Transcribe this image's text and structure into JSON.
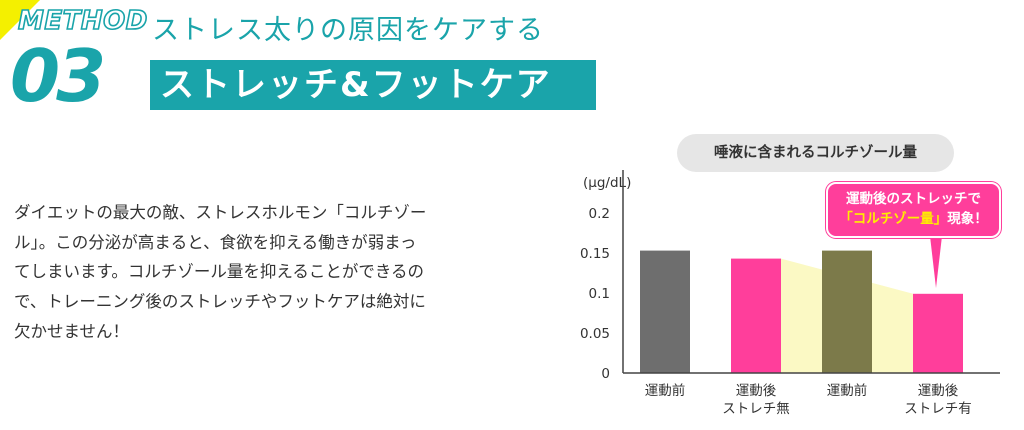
{
  "header": {
    "method_word": "METHOD",
    "method_number": "03",
    "subtitle": "ストレス太りの原因をケアする",
    "title": "ストレッチ&フットケア"
  },
  "body": {
    "lines": [
      "ダイエットの最大の敵、ストレスホルモン「コルチゾー",
      "ル」。この分泌が高まると、食欲を抑える働きが弱まっ",
      "てしまいます。コルチゾール量を抑えることができるの",
      "で、トレーニング後のストレッチやフットケアは絶対に",
      "欠かせません！"
    ]
  },
  "callout": {
    "line1": "運動後のストレッチで",
    "line2_highlight": "「コルチゾー量」",
    "line2_rest": "現象！"
  },
  "colors": {
    "teal": "#1aa4aa",
    "gray_bar": "#6e6e6e",
    "pink_bar": "#ff3e9b",
    "yellow_band": "#fbf9c4",
    "accent_yellow": "#f4f000"
  },
  "chart_data": {
    "type": "bar",
    "title": "唾液に含まれるコルチゾール量",
    "ylabel": "(μg/dL)",
    "ylim": [
      0,
      0.2
    ],
    "yticks": [
      0,
      0.05,
      0.1,
      0.15,
      0.2
    ],
    "ytick_labels": [
      "0",
      "0.05",
      "0.1",
      "0.15",
      "0.2"
    ],
    "categories": [
      [
        "運動前"
      ],
      [
        "運動後",
        "ストレチ無"
      ],
      [
        "運動前"
      ],
      [
        "運動後",
        "ストレチ有"
      ]
    ],
    "values": [
      0.153,
      0.143,
      0.153,
      0.099
    ],
    "bar_colors": [
      "#6e6e6e",
      "#ff3e9b",
      "#6e6e6e",
      "#ff3e9b"
    ],
    "grid": false
  }
}
